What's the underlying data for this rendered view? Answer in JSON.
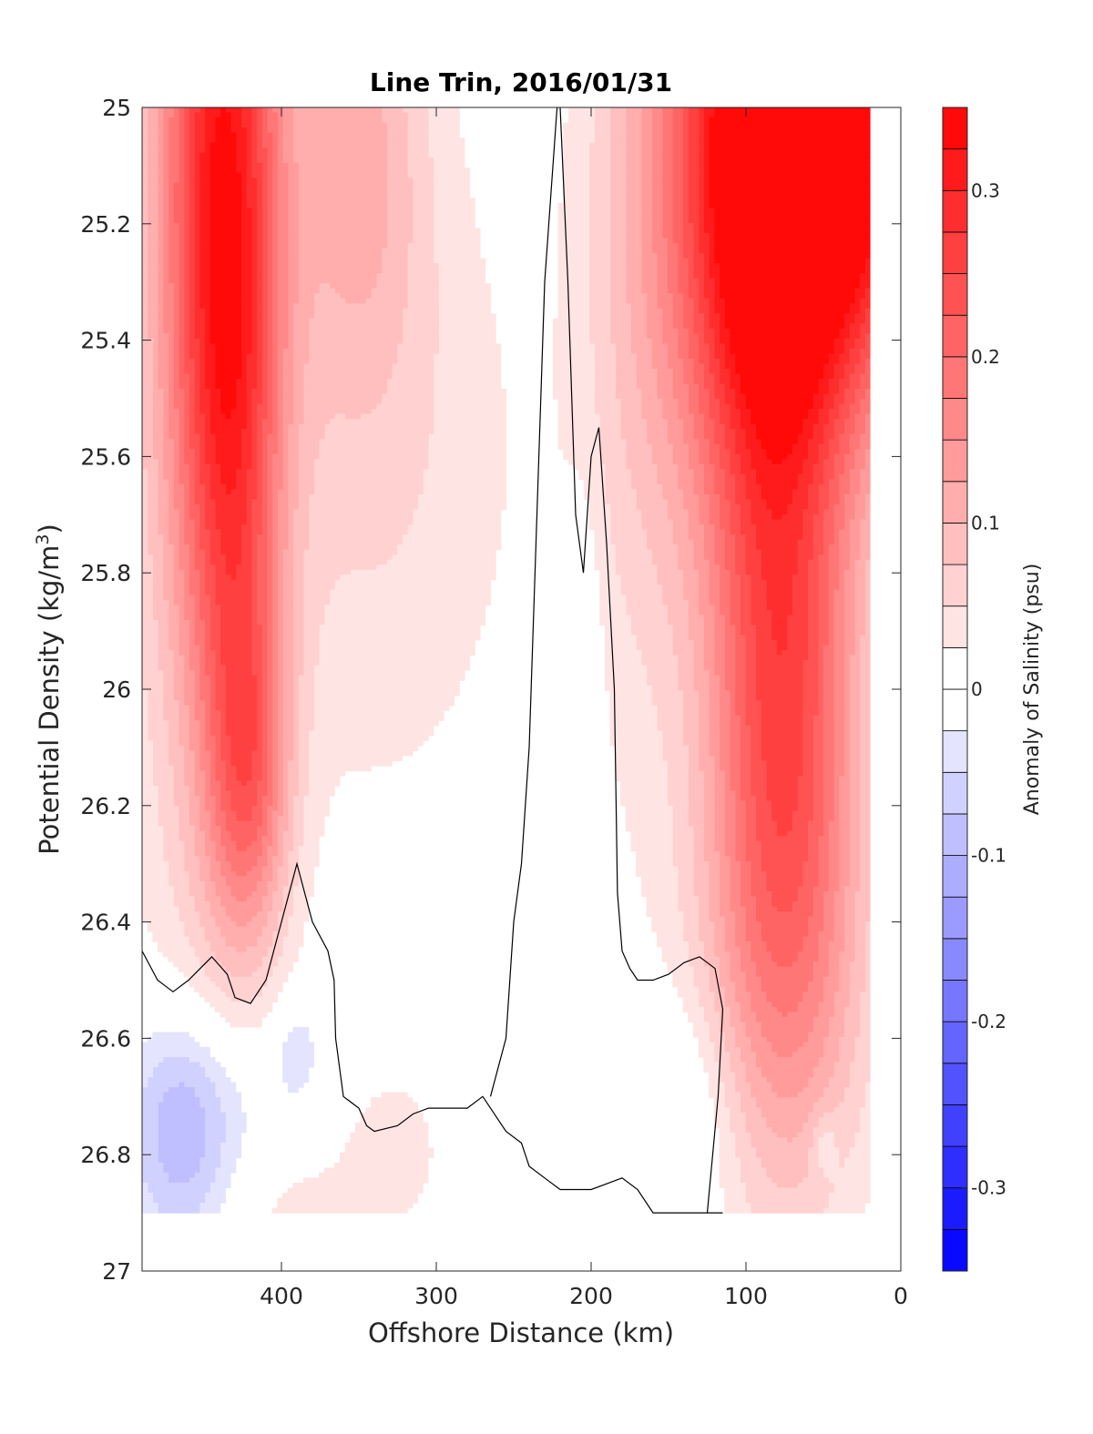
{
  "chart_data": {
    "type": "contourf",
    "title": "Line Trin, 2016/01/31",
    "xlabel": "Offshore Distance (km)",
    "ylabel": "Potential Density (kg/m",
    "ylabel_sup": "3",
    "ylabel_end": ")",
    "x_reversed": true,
    "y_reversed": true,
    "xlim": [
      0,
      490
    ],
    "ylim": [
      25,
      27
    ],
    "xticks": [
      400,
      300,
      200,
      100,
      0
    ],
    "xtick_labels": [
      "400",
      "300",
      "200",
      "100",
      "0"
    ],
    "yticks": [
      25,
      25.2,
      25.4,
      25.6,
      25.8,
      26,
      26.2,
      26.4,
      26.6,
      26.8,
      27
    ],
    "ytick_labels": [
      "25",
      "25.2",
      "25.4",
      "25.6",
      "25.8",
      "26",
      "26.2",
      "26.4",
      "26.6",
      "26.8",
      "27"
    ],
    "colorbar": {
      "label": "Anomaly of Salinity (psu)",
      "range": [
        -0.35,
        0.35
      ],
      "levels": [
        -0.35,
        -0.325,
        -0.3,
        -0.275,
        -0.25,
        -0.225,
        -0.2,
        -0.175,
        -0.15,
        -0.125,
        -0.1,
        -0.075,
        -0.05,
        -0.025,
        0,
        0.025,
        0.05,
        0.075,
        0.1,
        0.125,
        0.15,
        0.175,
        0.2,
        0.225,
        0.25,
        0.275,
        0.3,
        0.325,
        0.35
      ],
      "ticks": [
        -0.3,
        -0.2,
        -0.1,
        0,
        0.1,
        0.2,
        0.3
      ],
      "tick_labels": [
        "-0.3",
        "-0.2",
        "-0.1",
        "0",
        "0.1",
        "0.2",
        "0.3"
      ]
    },
    "fields": [
      {
        "name": "positive anomaly blobs",
        "blobs": [
          {
            "x": 440,
            "y": 25.0,
            "sx": 28,
            "sy": 0.55,
            "v": 0.2
          },
          {
            "x": 430,
            "y": 25.6,
            "sx": 22,
            "sy": 0.55,
            "v": 0.14
          },
          {
            "x": 420,
            "y": 26.15,
            "sx": 18,
            "sy": 0.2,
            "v": 0.12
          },
          {
            "x": 350,
            "y": 25.05,
            "sx": 30,
            "sy": 0.3,
            "v": 0.09
          },
          {
            "x": 340,
            "y": 25.6,
            "sx": 70,
            "sy": 0.45,
            "v": 0.05
          },
          {
            "x": 460,
            "y": 25.4,
            "sx": 35,
            "sy": 0.9,
            "v": 0.06
          },
          {
            "x": 30,
            "y": 25.0,
            "sx": 45,
            "sy": 0.35,
            "v": 0.35
          },
          {
            "x": 100,
            "y": 25.05,
            "sx": 40,
            "sy": 0.4,
            "v": 0.27
          },
          {
            "x": 80,
            "y": 25.8,
            "sx": 35,
            "sy": 0.6,
            "v": 0.18
          },
          {
            "x": 70,
            "y": 26.2,
            "sx": 35,
            "sy": 0.35,
            "v": 0.1
          },
          {
            "x": 170,
            "y": 25.3,
            "sx": 30,
            "sy": 0.6,
            "v": 0.06
          },
          {
            "x": 330,
            "y": 26.8,
            "sx": 30,
            "sy": 0.12,
            "v": 0.035
          },
          {
            "x": 390,
            "y": 26.9,
            "sx": 25,
            "sy": 0.08,
            "v": 0.03
          },
          {
            "x": 80,
            "y": 26.6,
            "sx": 50,
            "sy": 0.25,
            "v": 0.04
          }
        ]
      },
      {
        "name": "negative anomaly blobs",
        "blobs": [
          {
            "x": 465,
            "y": 26.78,
            "sx": 25,
            "sy": 0.15,
            "v": -0.09
          },
          {
            "x": 440,
            "y": 26.7,
            "sx": 40,
            "sy": 0.12,
            "v": -0.04
          },
          {
            "x": 390,
            "y": 26.62,
            "sx": 10,
            "sy": 0.06,
            "v": -0.04
          },
          {
            "x": 140,
            "y": 26.72,
            "sx": 30,
            "sy": 0.15,
            "v": -0.05
          },
          {
            "x": 205,
            "y": 26.05,
            "sx": 8,
            "sy": 0.25,
            "v": -0.04
          },
          {
            "x": 50,
            "y": 26.78,
            "sx": 6,
            "sy": 0.04,
            "v": -0.04
          }
        ]
      }
    ],
    "zero_contours": [
      {
        "x": [
          490,
          480,
          470,
          460,
          445,
          435,
          430,
          420,
          410,
          400,
          395,
          390,
          380,
          370,
          366,
          365,
          360,
          350,
          345,
          340,
          325,
          315,
          305,
          300,
          295,
          290,
          280,
          270,
          265,
          255,
          245,
          240,
          230,
          220,
          210,
          200,
          190,
          180,
          170,
          160,
          150,
          140,
          130,
          122,
          120,
          115
        ],
        "y": [
          26.45,
          26.5,
          26.52,
          26.5,
          26.46,
          26.49,
          26.53,
          26.54,
          26.5,
          26.4,
          26.35,
          26.3,
          26.4,
          26.45,
          26.5,
          26.6,
          26.7,
          26.72,
          26.75,
          26.76,
          26.75,
          26.73,
          26.72,
          26.72,
          26.72,
          26.72,
          26.72,
          26.7,
          26.72,
          26.76,
          26.78,
          26.82,
          26.84,
          26.86,
          26.86,
          26.86,
          26.85,
          26.84,
          26.86,
          26.9,
          26.9,
          26.9,
          26.9,
          26.9,
          26.9,
          26.9
        ]
      },
      {
        "x": [
          265,
          255,
          250,
          245,
          240,
          235,
          230,
          222,
          220,
          215,
          210,
          205,
          200,
          195,
          190,
          185,
          183,
          180,
          175,
          170,
          160,
          150,
          140,
          130,
          120,
          115,
          118,
          125
        ],
        "y": [
          26.7,
          26.6,
          26.4,
          26.3,
          26.1,
          25.7,
          25.3,
          25.0,
          25.0,
          25.3,
          25.7,
          25.8,
          25.6,
          25.55,
          25.75,
          26.0,
          26.35,
          26.45,
          26.48,
          26.5,
          26.5,
          26.49,
          26.47,
          26.46,
          26.48,
          26.55,
          26.7,
          26.9
        ]
      }
    ]
  }
}
